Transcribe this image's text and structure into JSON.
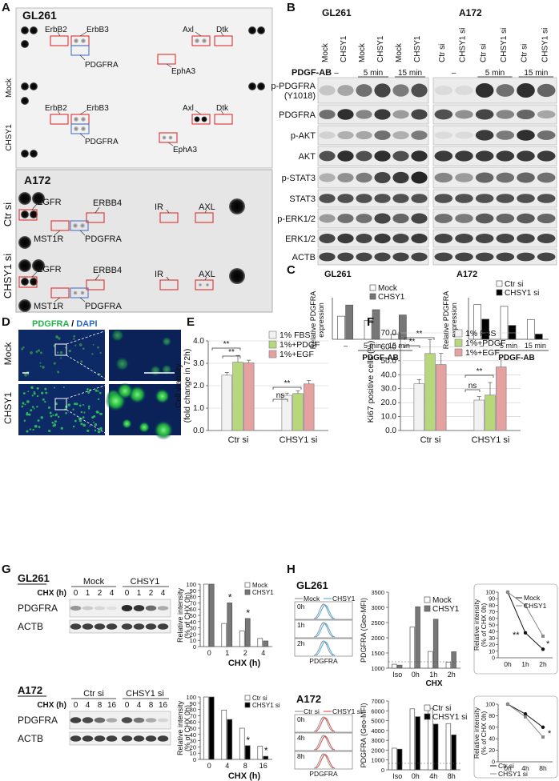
{
  "panels": {
    "A": {
      "letter": "A",
      "gl261_title": "GL261",
      "a172_title": "A172",
      "row_labels_gl261": [
        "Mock",
        "CHSY1"
      ],
      "row_labels_a172": [
        "Ctr si",
        "CHSY1 si"
      ],
      "gl261_spots": {
        "erbb2": "ErbB2",
        "erbb3": "ErbB3",
        "pdgfra": "PDGFRA",
        "axl": "Axl",
        "dtk": "Dtk",
        "epha3": "EphA3"
      },
      "a172_spots": {
        "egfr": "EGFR",
        "erbb4": "ERBB4",
        "ir": "IR",
        "axl": "AXL",
        "mst1r": "MST1R",
        "pdgfra": "PDGFRA"
      }
    },
    "B": {
      "letter": "B",
      "gl261_title": "GL261",
      "a172_title": "A172",
      "gl261_lanes": [
        "Mock",
        "CHSY1",
        "Mock",
        "CHSY1",
        "Mock",
        "CHSY1"
      ],
      "a172_lanes": [
        "Ctr si",
        "CHSY1 si",
        "Ctr si",
        "CHSY1 si",
        "Ctr si",
        "CHSY1 si"
      ],
      "treatment_label": "PDGF-AB",
      "times": [
        "–",
        "5 min",
        "15 min"
      ],
      "blot_labels": [
        "p-PDGFRA\n(Y1018)",
        "PDGFRA",
        "p-AKT",
        "AKT",
        "p-STAT3",
        "STAT3",
        "p-ERK1/2",
        "ERK1/2",
        "ACTB"
      ]
    },
    "C": {
      "letter": "C",
      "gl261_title": "GL261",
      "a172_title": "A172",
      "ylabel": "Relative PDGFRA expression",
      "xlabel": "PDGF-AB",
      "legend_gl261": [
        "Mock",
        "CHSY1"
      ],
      "legend_a172": [
        "Ctr si",
        "CHSY1 si"
      ]
    },
    "D": {
      "letter": "D",
      "title_green": "PDGFRA",
      "title_sep": " / ",
      "title_blue": "DAPI",
      "rows": [
        "Mock",
        "CHSY1"
      ]
    },
    "E": {
      "letter": "E",
      "ylabel": "Cell viability (fold change in 72h)",
      "legend": [
        "1% FBS",
        "1%+PDGF",
        "1%+EGF"
      ],
      "ns": "ns",
      "sig": "**"
    },
    "F": {
      "letter": "F",
      "ylabel": "Ki67 positive cells (%)",
      "legend": [
        "1% FBS",
        "1%+PDGF",
        "1%+EGF"
      ],
      "ns": "ns",
      "sig": "**"
    },
    "G": {
      "letter": "G",
      "gl261_title": "GL261",
      "a172_title": "A172",
      "chx_label": "CHX (h)",
      "gl261_groups": [
        "Mock",
        "CHSY1"
      ],
      "a172_groups": [
        "Ctr si",
        "CHSY1 si"
      ],
      "gl261_times": [
        "0",
        "1",
        "2",
        "4",
        "0",
        "1",
        "2",
        "4"
      ],
      "a172_times": [
        "0",
        "4",
        "8",
        "16",
        "0",
        "4",
        "8",
        "16"
      ],
      "blots": [
        "PDGFRA",
        "ACTB"
      ],
      "ylabel": "Relative intensity (% of CHX 0h)",
      "xlabel": "CHX (h)",
      "legend_gl261": [
        "Mock",
        "CHSY1"
      ],
      "legend_a172": [
        "Ctr si",
        "CHSY1 si"
      ],
      "star": "*"
    },
    "H": {
      "letter": "H",
      "gl261_title": "GL261",
      "a172_title": "A172",
      "flow_legend_gl261": [
        "Mock",
        "CHSY1"
      ],
      "flow_legend_a172": [
        "Ctr si",
        "CHSY1 si"
      ],
      "gl261_times": [
        "0h",
        "1h",
        "2h"
      ],
      "a172_times": [
        "0h",
        "4h",
        "8h"
      ],
      "flow_xlabel": "PDGFRA",
      "bar_ylabel": "PDGFRA (Geo-MFI)",
      "bar_xlabel": "CHX",
      "line_ylabel": "Relative intensity (% of CHX 0h)",
      "stars_gl261": "**",
      "star": "*"
    }
  },
  "chart_data": [
    {
      "id": "C-GL261",
      "type": "bar",
      "categories": [
        "–",
        "5 min",
        "15 min"
      ],
      "xlabel": "PDGF-AB",
      "ylabel": "Relative PDGFRA expression",
      "ylim": [
        0,
        1.8
      ],
      "series": [
        {
          "name": "Mock",
          "values": [
            1.0,
            0.82,
            0.22
          ],
          "color": "#ffffff"
        },
        {
          "name": "CHSY1",
          "values": [
            1.48,
            1.28,
            1.05
          ],
          "color": "#777777"
        }
      ]
    },
    {
      "id": "C-A172",
      "type": "bar",
      "categories": [
        "–",
        "5 min",
        "15 min"
      ],
      "xlabel": "PDGF-AB",
      "ylabel": "Relative PDGFRA expression",
      "ylim": [
        0,
        1.2
      ],
      "series": [
        {
          "name": "Ctr si",
          "values": [
            1.0,
            0.95,
            0.57
          ],
          "color": "#ffffff"
        },
        {
          "name": "CHSY1 si",
          "values": [
            0.58,
            0.4,
            0.15
          ],
          "color": "#000000"
        }
      ]
    },
    {
      "id": "E",
      "type": "bar",
      "categories": [
        "Ctr si",
        "CHSY1 si"
      ],
      "ylabel": "Cell viability (fold change in 72h)",
      "ylim": [
        0,
        4.0
      ],
      "yticks": [
        "0.0",
        "1.0",
        "2.0",
        "3.0",
        "4.0"
      ],
      "series": [
        {
          "name": "1% FBS",
          "values": [
            2.47,
            1.57
          ],
          "errors": [
            0.12,
            0.1
          ],
          "color": "#f2f2f2"
        },
        {
          "name": "1%+PDGF",
          "values": [
            3.05,
            1.65
          ],
          "errors": [
            0.3,
            0.12
          ],
          "color": "#b6d77a"
        },
        {
          "name": "1%+EGF",
          "values": [
            3.02,
            2.08
          ],
          "errors": [
            0.12,
            0.15
          ],
          "color": "#e5a0a0"
        }
      ]
    },
    {
      "id": "F",
      "type": "bar",
      "categories": [
        "Ctr si",
        "CHSY1 si"
      ],
      "ylabel": "Ki67 positive cells (%)",
      "ylim": [
        0,
        70
      ],
      "yticks": [
        "0.0",
        "10.0",
        "20.0",
        "30.0",
        "40.0",
        "50.0",
        "60.0",
        "70.0"
      ],
      "series": [
        {
          "name": "1% FBS",
          "values": [
            33.5,
            21.8
          ],
          "errors": [
            3,
            2.5
          ],
          "color": "#f2f2f2"
        },
        {
          "name": "1%+PDGF",
          "values": [
            55.2,
            25.4
          ],
          "errors": [
            10,
            9
          ],
          "color": "#b6d77a"
        },
        {
          "name": "1%+EGF",
          "values": [
            47.3,
            45.6
          ],
          "errors": [
            8,
            7
          ],
          "color": "#e5a0a0"
        }
      ]
    },
    {
      "id": "G-GL261",
      "type": "bar",
      "categories": [
        "0",
        "1",
        "2",
        "4"
      ],
      "xlabel": "CHX (h)",
      "ylabel": "Relative intensity (% of CHX 0h)",
      "ylim": [
        0,
        100
      ],
      "yticks": [
        "0",
        "10",
        "20",
        "30",
        "40",
        "50",
        "60",
        "70",
        "80",
        "90",
        "100"
      ],
      "series": [
        {
          "name": "Mock",
          "values": [
            100,
            37,
            25,
            13
          ],
          "color": "#ffffff"
        },
        {
          "name": "CHSY1",
          "values": [
            100,
            70,
            45,
            9
          ],
          "color": "#777777"
        }
      ]
    },
    {
      "id": "G-A172",
      "type": "bar",
      "categories": [
        "0",
        "4",
        "8",
        "16"
      ],
      "xlabel": "CHX (h)",
      "ylabel": "Relative intensity (% of CHX 0h)",
      "ylim": [
        0,
        100
      ],
      "yticks": [
        "0",
        "10",
        "20",
        "30",
        "40",
        "50",
        "60",
        "70",
        "80",
        "90",
        "100"
      ],
      "series": [
        {
          "name": "Ctr si",
          "values": [
            100,
            79,
            50,
            21
          ],
          "color": "#ffffff"
        },
        {
          "name": "CHSY1 si",
          "values": [
            100,
            64,
            22,
            5
          ],
          "color": "#000000"
        }
      ]
    },
    {
      "id": "H-GL261-bar",
      "type": "bar",
      "categories": [
        "Iso",
        "0h",
        "1h",
        "2h"
      ],
      "xlabel": "CHX",
      "ylabel": "PDGFRA (Geo-MFI)",
      "ylim": [
        1000,
        3500
      ],
      "yticks": [
        "1000",
        "1500",
        "2000",
        "2500",
        "3000",
        "3500"
      ],
      "series": [
        {
          "name": "Mock",
          "values": [
            1130,
            2350,
            1550,
            1200
          ],
          "color": "#ffffff"
        },
        {
          "name": "CHSY1",
          "values": [
            1100,
            3020,
            2610,
            1540
          ],
          "color": "#777777"
        }
      ]
    },
    {
      "id": "H-GL261-line",
      "type": "line",
      "categories": [
        "0h",
        "1h",
        "2h"
      ],
      "ylabel": "Relative intensity (% of CHX 0h)",
      "ylim": [
        0,
        100
      ],
      "yticks": [
        "0",
        "10",
        "20",
        "30",
        "40",
        "50",
        "60",
        "70",
        "80",
        "90",
        "100"
      ],
      "series": [
        {
          "name": "Mock",
          "values": [
            100,
            38,
            13
          ]
        },
        {
          "name": "CHSY1",
          "values": [
            100,
            80,
            33
          ]
        }
      ]
    },
    {
      "id": "H-A172-bar",
      "type": "bar",
      "categories": [
        "Iso",
        "0h",
        "4h",
        "8h"
      ],
      "xlabel": "CHX",
      "ylabel": "PDGFRA (Geo-MFI)",
      "ylim": [
        0,
        7000
      ],
      "yticks": [
        "0",
        "1000",
        "2000",
        "3000",
        "4000",
        "5000",
        "6000",
        "7000"
      ],
      "series": [
        {
          "name": "Ctr si",
          "values": [
            2200,
            6200,
            6250,
            4700
          ],
          "color": "#ffffff"
        },
        {
          "name": "CHSY1 si",
          "values": [
            2100,
            5400,
            4650,
            3550
          ],
          "color": "#000000"
        }
      ]
    },
    {
      "id": "H-A172-line",
      "type": "line",
      "categories": [
        "0h",
        "4h",
        "8h"
      ],
      "ylabel": "Relative intensity (% of CHX 0h)",
      "ylim": [
        0,
        100
      ],
      "yticks": [
        "0",
        "20",
        "40",
        "60",
        "80",
        "100"
      ],
      "series": [
        {
          "name": "Ctr si",
          "values": [
            100,
            83,
            60
          ]
        },
        {
          "name": "CHSY1 si",
          "values": [
            100,
            78,
            43
          ]
        }
      ]
    }
  ]
}
